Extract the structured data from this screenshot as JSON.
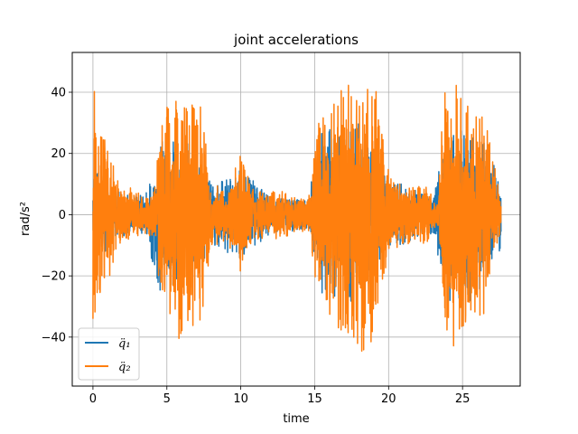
{
  "chart_data": {
    "type": "line",
    "title": "joint accelerations",
    "xlabel": "time",
    "ylabel": "rad/s²",
    "xlim": [
      -1.4,
      28.9
    ],
    "ylim": [
      -56.0,
      53.0
    ],
    "xticks": [
      0,
      5,
      10,
      15,
      20,
      25
    ],
    "yticks": [
      -40,
      -20,
      0,
      20,
      40
    ],
    "grid": true,
    "legend_position": "lower-left",
    "x_range": [
      0,
      27.6
    ],
    "series": [
      {
        "name": "q̈₁",
        "color": "#1f77b4",
        "note": "dense oscillating signal, almost entirely hidden behind series 2",
        "envelope": [
          {
            "x": 0.0,
            "amp": 18
          },
          {
            "x": 1.5,
            "amp": 8
          },
          {
            "x": 3.5,
            "amp": 6
          },
          {
            "x": 4.5,
            "amp": 25
          },
          {
            "x": 6.5,
            "amp": 25
          },
          {
            "x": 8.0,
            "amp": 10
          },
          {
            "x": 10.0,
            "amp": 15
          },
          {
            "x": 12.0,
            "amp": 6
          },
          {
            "x": 14.5,
            "amp": 5
          },
          {
            "x": 15.5,
            "amp": 28
          },
          {
            "x": 18.0,
            "amp": 30
          },
          {
            "x": 20.0,
            "amp": 12
          },
          {
            "x": 23.0,
            "amp": 6
          },
          {
            "x": 24.0,
            "amp": 30
          },
          {
            "x": 26.0,
            "amp": 28
          },
          {
            "x": 27.6,
            "amp": 12
          }
        ]
      },
      {
        "name": "q̈₂",
        "color": "#ff7f0e",
        "envelope": [
          {
            "x": 0.0,
            "amp": 45
          },
          {
            "x": 0.3,
            "amp": 30
          },
          {
            "x": 0.8,
            "amp": 25
          },
          {
            "x": 1.3,
            "amp": 18
          },
          {
            "x": 2.0,
            "amp": 10
          },
          {
            "x": 3.0,
            "amp": 8
          },
          {
            "x": 3.6,
            "amp": 6
          },
          {
            "x": 4.2,
            "amp": 10
          },
          {
            "x": 4.6,
            "amp": 35
          },
          {
            "x": 5.5,
            "amp": 42
          },
          {
            "x": 6.5,
            "amp": 40
          },
          {
            "x": 7.5,
            "amp": 35
          },
          {
            "x": 8.0,
            "amp": 12
          },
          {
            "x": 9.0,
            "amp": 8
          },
          {
            "x": 10.0,
            "amp": 20
          },
          {
            "x": 11.0,
            "amp": 8
          },
          {
            "x": 12.0,
            "amp": 8
          },
          {
            "x": 13.0,
            "amp": 8
          },
          {
            "x": 14.0,
            "amp": 5
          },
          {
            "x": 14.7,
            "amp": 8
          },
          {
            "x": 15.2,
            "amp": 30
          },
          {
            "x": 16.5,
            "amp": 40
          },
          {
            "x": 17.5,
            "amp": 45
          },
          {
            "x": 19.0,
            "amp": 45
          },
          {
            "x": 20.0,
            "amp": 15
          },
          {
            "x": 21.0,
            "amp": 10
          },
          {
            "x": 22.5,
            "amp": 10
          },
          {
            "x": 23.3,
            "amp": 3
          },
          {
            "x": 23.7,
            "amp": 40
          },
          {
            "x": 24.5,
            "amp": 45
          },
          {
            "x": 25.5,
            "amp": 35
          },
          {
            "x": 26.5,
            "amp": 35
          },
          {
            "x": 27.2,
            "amp": 15
          },
          {
            "x": 27.6,
            "amp": 5
          }
        ]
      }
    ]
  }
}
